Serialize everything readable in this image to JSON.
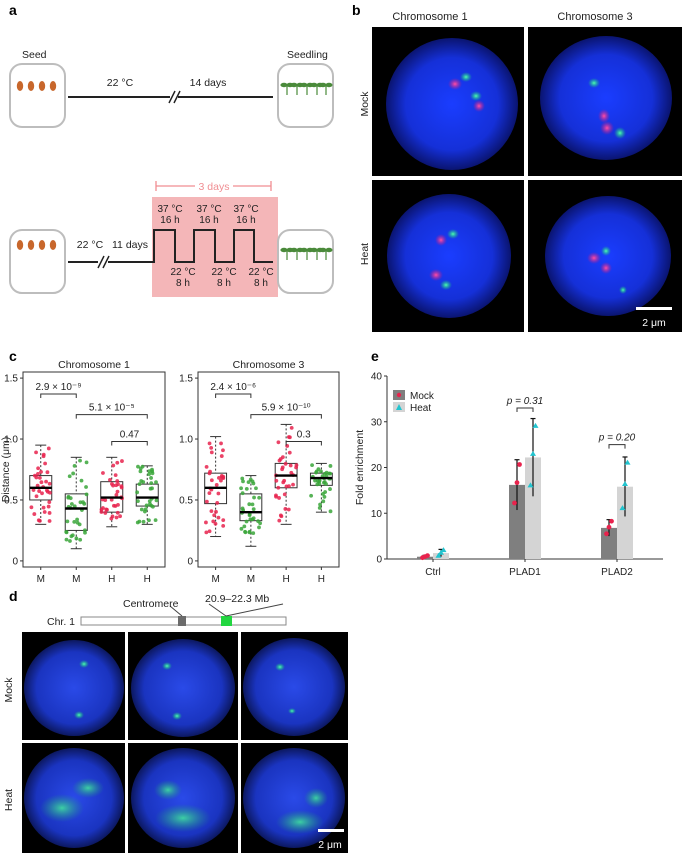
{
  "panel_labels": {
    "a": "a",
    "b": "b",
    "c": "c",
    "d": "d",
    "e": "e"
  },
  "panel_a": {
    "seed_label": "Seed",
    "seedling_label": "Seedling",
    "control_temp": "22 °C",
    "control_days": "14 days",
    "heat_pre_temp": "22 °C",
    "heat_pre_days": "11 days",
    "period_label": "3 days",
    "high_temp": "37 °C",
    "high_dur": "16 h",
    "low_temp": "22 °C",
    "low_dur": "8 h",
    "colors": {
      "pink": "#f4b6b8",
      "pink_text": "#f08d92",
      "seed": "#c8672c",
      "plant": "#4a8a3a"
    }
  },
  "panel_b": {
    "col_labels": [
      "Chromosome 1",
      "Chromosome 3"
    ],
    "row_labels": [
      "Mock",
      "Heat"
    ],
    "scale_bar": "2 μm"
  },
  "panel_c": {
    "chart_data": [
      {
        "type": "box",
        "title": "Chromosome 1",
        "ylabel": "Distance (μm)",
        "categories": [
          "M",
          "M",
          "H",
          "H"
        ],
        "ylim": [
          -0.05,
          1.55
        ],
        "yticks": [
          "0",
          "0.5",
          "1.0",
          "1.5"
        ],
        "boxes": [
          {
            "q1": 0.5,
            "median": 0.6,
            "q3": 0.7,
            "whisker_low": 0.3,
            "whisker_high": 0.95,
            "color": "#e8234d"
          },
          {
            "q1": 0.25,
            "median": 0.43,
            "q3": 0.55,
            "whisker_low": 0.1,
            "whisker_high": 0.85,
            "color": "#3aa63a"
          },
          {
            "q1": 0.4,
            "median": 0.52,
            "q3": 0.65,
            "whisker_low": 0.28,
            "whisker_high": 0.85,
            "color": "#e8234d"
          },
          {
            "q1": 0.45,
            "median": 0.52,
            "q3": 0.63,
            "whisker_low": 0.3,
            "whisker_high": 0.78,
            "color": "#3aa63a"
          }
        ],
        "comparisons": [
          {
            "from": 0,
            "to": 1,
            "y": 1.37,
            "label": "2.9 × 10⁻⁹"
          },
          {
            "from": 1,
            "to": 3,
            "y": 1.2,
            "label": "5.1 × 10⁻⁵"
          },
          {
            "from": 2,
            "to": 3,
            "y": 0.98,
            "label": "0.47"
          }
        ]
      },
      {
        "type": "box",
        "title": "Chromosome 3",
        "ylabel": "Distance (μm)",
        "categories": [
          "M",
          "M",
          "H",
          "H"
        ],
        "ylim": [
          -0.05,
          1.55
        ],
        "yticks": [
          "0",
          "0.5",
          "1.0",
          "1.5"
        ],
        "boxes": [
          {
            "q1": 0.47,
            "median": 0.6,
            "q3": 0.72,
            "whisker_low": 0.2,
            "whisker_high": 1.02,
            "color": "#e8234d"
          },
          {
            "q1": 0.33,
            "median": 0.4,
            "q3": 0.55,
            "whisker_low": 0.12,
            "whisker_high": 0.7,
            "color": "#3aa63a"
          },
          {
            "q1": 0.6,
            "median": 0.7,
            "q3": 0.8,
            "whisker_low": 0.3,
            "whisker_high": 1.12,
            "color": "#e8234d"
          },
          {
            "q1": 0.62,
            "median": 0.68,
            "q3": 0.72,
            "whisker_low": 0.4,
            "whisker_high": 0.8,
            "color": "#3aa63a"
          }
        ],
        "comparisons": [
          {
            "from": 0,
            "to": 1,
            "y": 1.37,
            "label": "2.4 × 10⁻⁶"
          },
          {
            "from": 1,
            "to": 3,
            "y": 1.2,
            "label": "5.9 × 10⁻¹⁰"
          },
          {
            "from": 2,
            "to": 3,
            "y": 0.98,
            "label": "0.3"
          }
        ]
      }
    ]
  },
  "panel_d": {
    "chromosome_label": "Chr. 1",
    "centromere_label": "Centromere",
    "region_label": "20.9–22.3 Mb",
    "row_labels": [
      "Mock",
      "Heat"
    ],
    "scale_bar": "2 μm"
  },
  "panel_e": {
    "chart_data": {
      "type": "bar",
      "categories": [
        "Ctrl",
        "PLAD1",
        "PLAD2"
      ],
      "ylabel": "Fold enrichment",
      "ylim": [
        0,
        40
      ],
      "yticks": [
        "0",
        "10",
        "20",
        "30",
        "40"
      ],
      "series": [
        {
          "name": "Mock",
          "values": [
            0.5,
            16.2,
            6.8
          ],
          "errors": [
            0.3,
            5.5,
            1.8
          ],
          "color": "#7f7f7f",
          "marker_color": "#e8234d"
        },
        {
          "name": "Heat",
          "values": [
            1.3,
            22.2,
            15.8
          ],
          "errors": [
            0.8,
            8.5,
            6.5
          ],
          "color": "#d4d4d4",
          "marker_color": "#22c4cf"
        }
      ],
      "annotations": [
        {
          "category": 1,
          "y": 33,
          "label": "p = 0.31"
        },
        {
          "category": 2,
          "y": 25,
          "label": "p = 0.20"
        }
      ],
      "legend": "top-left"
    }
  }
}
